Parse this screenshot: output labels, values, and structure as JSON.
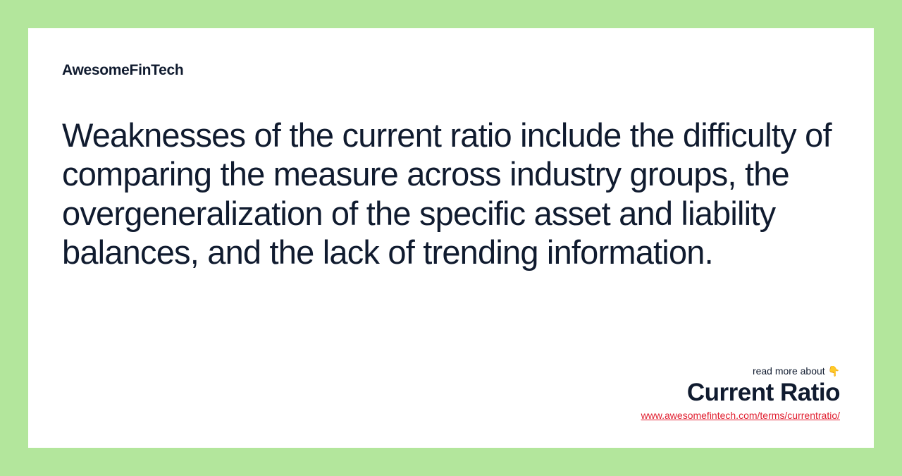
{
  "brand": "AwesomeFinTech",
  "body_text": "Weaknesses of the current ratio include the difficulty of comparing the measure across industry groups, the overgeneralization of the specific asset and liability balances, and the lack of trending information.",
  "footer": {
    "read_more": "read more about 👇",
    "title": "Current Ratio",
    "link": "www.awesomefintech.com/terms/currentratio/"
  },
  "colors": {
    "background": "#b3e69c",
    "card_background": "#ffffff",
    "text_primary": "#101b2f",
    "link_color": "#e11d2e"
  }
}
